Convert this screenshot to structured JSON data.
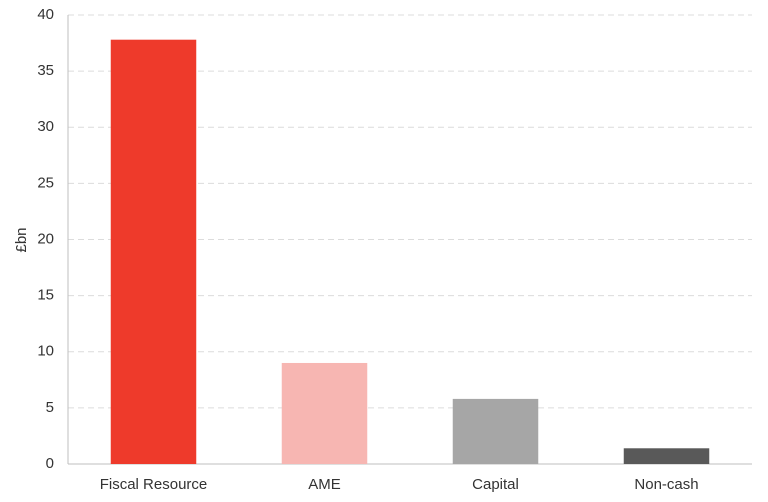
{
  "chart_data": {
    "type": "bar",
    "y_label": "£bn",
    "categories": [
      "Fiscal Resource",
      "AME",
      "Capital",
      "Non-cash"
    ],
    "values": [
      37.8,
      9.0,
      5.8,
      1.4
    ],
    "colors": [
      "#ee3a2b",
      "#f7b6b2",
      "#a6a6a6",
      "#595959"
    ],
    "ylim": [
      0,
      40
    ],
    "yticks": [
      0,
      5,
      10,
      15,
      20,
      25,
      30,
      35,
      40
    ],
    "grid": true
  }
}
